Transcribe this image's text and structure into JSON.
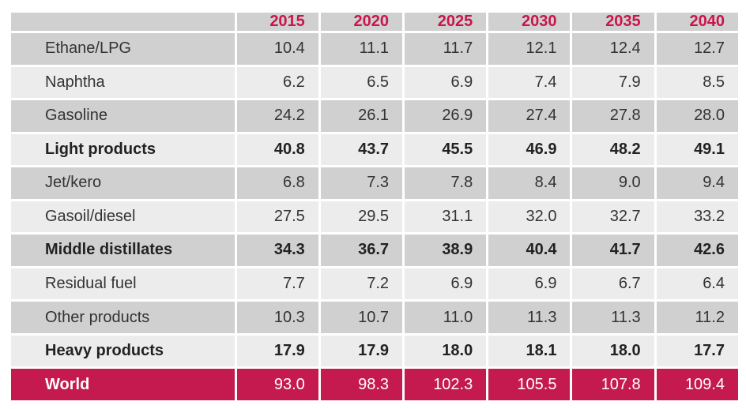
{
  "chart_data": {
    "type": "table",
    "columns": [
      "2015",
      "2020",
      "2025",
      "2030",
      "2035",
      "2040"
    ],
    "rows": [
      {
        "label": "Ethane/LPG",
        "values": [
          "10.4",
          "11.1",
          "11.7",
          "12.1",
          "12.4",
          "12.7"
        ],
        "style": "shade"
      },
      {
        "label": "Naphtha",
        "values": [
          "6.2",
          "6.5",
          "6.9",
          "7.4",
          "7.9",
          "8.5"
        ],
        "style": "plain"
      },
      {
        "label": "Gasoline",
        "values": [
          "24.2",
          "26.1",
          "26.9",
          "27.4",
          "27.8",
          "28.0"
        ],
        "style": "shade"
      },
      {
        "label": "Light products",
        "values": [
          "40.8",
          "43.7",
          "45.5",
          "46.9",
          "48.2",
          "49.1"
        ],
        "style": "plain bold"
      },
      {
        "label": "Jet/kero",
        "values": [
          "6.8",
          "7.3",
          "7.8",
          "8.4",
          "9.0",
          "9.4"
        ],
        "style": "shade"
      },
      {
        "label": "Gasoil/diesel",
        "values": [
          "27.5",
          "29.5",
          "31.1",
          "32.0",
          "32.7",
          "33.2"
        ],
        "style": "plain"
      },
      {
        "label": "Middle distillates",
        "values": [
          "34.3",
          "36.7",
          "38.9",
          "40.4",
          "41.7",
          "42.6"
        ],
        "style": "shade bold"
      },
      {
        "label": "Residual fuel",
        "values": [
          "7.7",
          "7.2",
          "6.9",
          "6.9",
          "6.7",
          "6.4"
        ],
        "style": "plain"
      },
      {
        "label": "Other products",
        "values": [
          "10.3",
          "10.7",
          "11.0",
          "11.3",
          "11.3",
          "11.2"
        ],
        "style": "shade"
      },
      {
        "label": "Heavy products",
        "values": [
          "17.9",
          "17.9",
          "18.0",
          "18.1",
          "18.0",
          "17.7"
        ],
        "style": "plain bold"
      },
      {
        "label": "World",
        "values": [
          "93.0",
          "98.3",
          "102.3",
          "105.5",
          "107.8",
          "109.4"
        ],
        "style": "world"
      }
    ]
  },
  "colors": {
    "header_year": "#c8164c",
    "world_row_bg": "#c41a4f",
    "shade_row_bg": "#d0d0d0",
    "plain_row_bg": "#ececec"
  }
}
